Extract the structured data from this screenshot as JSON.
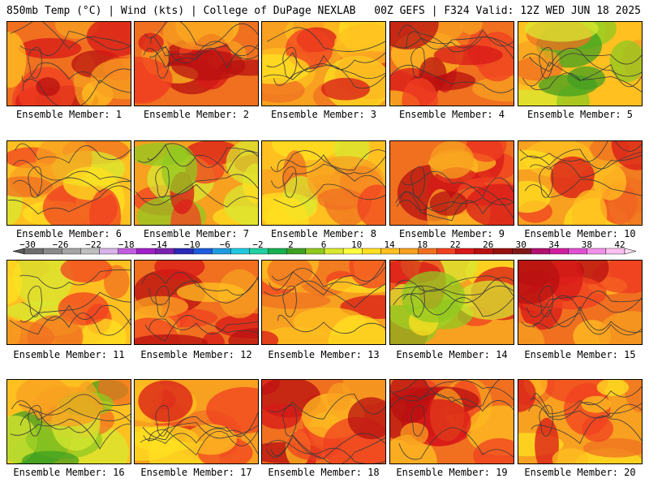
{
  "header": {
    "title_left": "850mb Temp (°C) | Wind (kts) | College of DuPage NEXLAB",
    "title_right": "00Z GEFS | F324 Valid: 12Z WED JUN 18 2025"
  },
  "panels": [
    {
      "label": "Ensemble Member: 1",
      "palette": "hot"
    },
    {
      "label": "Ensemble Member: 2",
      "palette": "hot"
    },
    {
      "label": "Ensemble Member: 3",
      "palette": "warm"
    },
    {
      "label": "Ensemble Member: 4",
      "palette": "hot"
    },
    {
      "label": "Ensemble Member: 5",
      "palette": "cool"
    },
    {
      "label": "Ensemble Member: 6",
      "palette": "mild"
    },
    {
      "label": "Ensemble Member: 7",
      "palette": "mixed"
    },
    {
      "label": "Ensemble Member: 8",
      "palette": "mild"
    },
    {
      "label": "Ensemble Member: 9",
      "palette": "hot"
    },
    {
      "label": "Ensemble Member: 10",
      "palette": "warm"
    },
    {
      "label": "Ensemble Member: 11",
      "palette": "mild"
    },
    {
      "label": "Ensemble Member: 12",
      "palette": "hot"
    },
    {
      "label": "Ensemble Member: 13",
      "palette": "warm"
    },
    {
      "label": "Ensemble Member: 14",
      "palette": "mixed"
    },
    {
      "label": "Ensemble Member: 15",
      "palette": "hot"
    },
    {
      "label": "Ensemble Member: 16",
      "palette": "cool"
    },
    {
      "label": "Ensemble Member: 17",
      "palette": "warm"
    },
    {
      "label": "Ensemble Member: 18",
      "palette": "hot"
    },
    {
      "label": "Ensemble Member: 19",
      "palette": "hot"
    },
    {
      "label": "Ensemble Member: 20",
      "palette": "warm"
    }
  ],
  "colorbar": {
    "labels": [
      "-30",
      "-26",
      "-22",
      "-18",
      "-14",
      "-10",
      "-6",
      "-2",
      "2",
      "6",
      "10",
      "14",
      "18",
      "22",
      "26",
      "30",
      "34",
      "38",
      "42"
    ],
    "colors": [
      "#6e6e6e",
      "#8a8a8a",
      "#a5a5a5",
      "#bfbfbf",
      "#d8b4e8",
      "#c05ce0",
      "#a020c8",
      "#7a22b0",
      "#2a2ab8",
      "#1e5adc",
      "#1e9ae0",
      "#20c8e0",
      "#20d0a0",
      "#18b050",
      "#40a020",
      "#90c820",
      "#d8e830",
      "#ffff40",
      "#ffe020",
      "#ffc020",
      "#f8a020",
      "#f07020",
      "#f04020",
      "#d81818",
      "#b81010",
      "#981010",
      "#801818",
      "#b01070",
      "#d020a0",
      "#e050d0",
      "#f090e8",
      "#ffc0f0"
    ]
  }
}
